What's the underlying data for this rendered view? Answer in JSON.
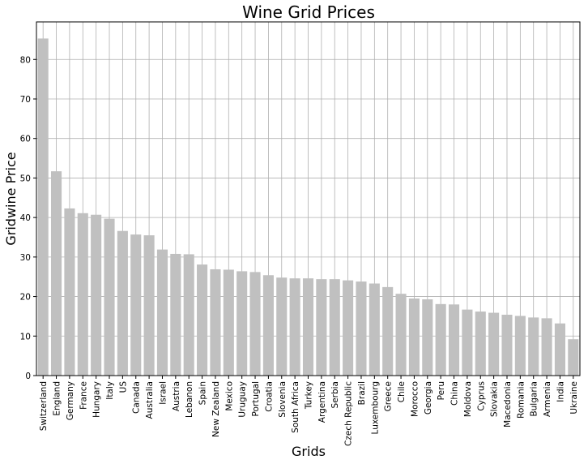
{
  "chart_data": {
    "type": "bar",
    "title": "Wine Grid Prices",
    "xlabel": "Grids",
    "ylabel": "Gridwine Price",
    "ylim": [
      0,
      89.5
    ],
    "yticks": [
      0,
      10,
      20,
      30,
      40,
      50,
      60,
      70,
      80
    ],
    "grid": true,
    "bar_color": "#c0c0c0",
    "categories": [
      "Switzerland",
      "England",
      "Germany",
      "France",
      "Hungary",
      "Italy",
      "US",
      "Canada",
      "Australia",
      "Israel",
      "Austria",
      "Lebanon",
      "Spain",
      "New Zealand",
      "Mexico",
      "Uruguay",
      "Portugal",
      "Croatia",
      "Slovenia",
      "South Africa",
      "Turkey",
      "Argentina",
      "Serbia",
      "Czech Republic",
      "Brazil",
      "Luxembourg",
      "Greece",
      "Chile",
      "Morocco",
      "Georgia",
      "Peru",
      "China",
      "Moldova",
      "Cyprus",
      "Slovakia",
      "Macedonia",
      "Romania",
      "Bulgaria",
      "Armenia",
      "India",
      "Ukraine"
    ],
    "values": [
      85.3,
      51.7,
      42.3,
      41.1,
      40.7,
      39.7,
      36.6,
      35.7,
      35.5,
      31.9,
      30.8,
      30.7,
      28.1,
      26.9,
      26.8,
      26.4,
      26.2,
      25.4,
      24.8,
      24.6,
      24.6,
      24.4,
      24.4,
      24.1,
      23.8,
      23.3,
      22.4,
      20.7,
      19.5,
      19.3,
      18.1,
      18.0,
      16.7,
      16.2,
      15.9,
      15.4,
      15.1,
      14.7,
      14.5,
      13.2,
      9.2
    ]
  }
}
